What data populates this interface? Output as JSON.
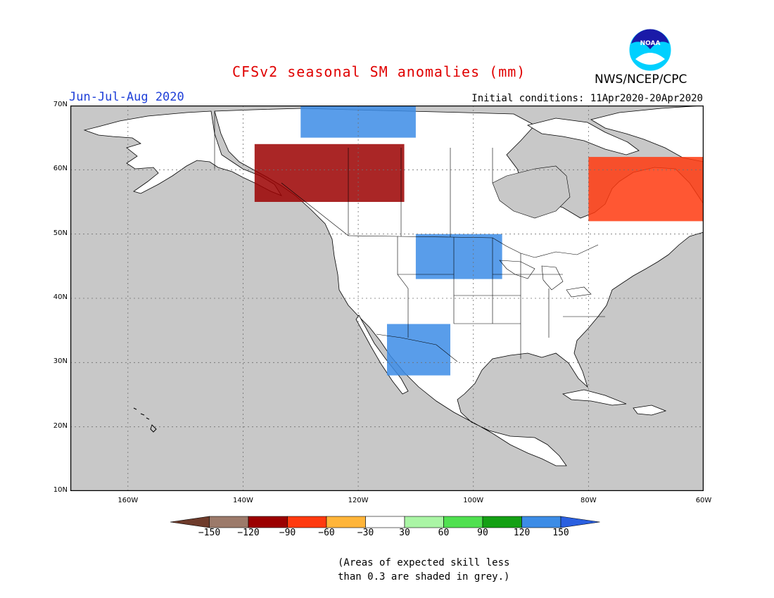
{
  "header": {
    "title": "CFSv2 seasonal SM anomalies (mm)",
    "season": "Jun-Jul-Aug 2020",
    "initial_conditions": "Initial conditions: 11Apr2020-20Apr2020",
    "agency": "NWS/NCEP/CPC",
    "logo_text": "NOAA"
  },
  "map": {
    "lon_range": [
      -170,
      -60
    ],
    "lat_range": [
      10,
      70
    ],
    "lat_labels": [
      "70N",
      "60N",
      "50N",
      "40N",
      "30N",
      "20N",
      "10N"
    ],
    "lon_labels": [
      "160W",
      "140W",
      "120W",
      "100W",
      "80W",
      "60W"
    ],
    "ocean_color": "#c8c8c8",
    "land_color": "#ffffff",
    "anomaly_areas": [
      {
        "region": "western-canada",
        "lon": [
          -138,
          -112
        ],
        "lat": [
          55,
          64
        ],
        "class": -105
      },
      {
        "region": "northern-quebec",
        "lon": [
          -80,
          -60
        ],
        "lat": [
          52,
          62
        ],
        "class": -75
      },
      {
        "region": "northern-plains",
        "lon": [
          -110,
          -95
        ],
        "lat": [
          43,
          50
        ],
        "class": 135
      },
      {
        "region": "southwest-us",
        "lon": [
          -115,
          -104
        ],
        "lat": [
          28,
          36
        ],
        "class": 135
      },
      {
        "region": "arctic-canada",
        "lon": [
          -130,
          -110
        ],
        "lat": [
          65,
          70
        ],
        "class": 135
      }
    ]
  },
  "colorbar": {
    "colors": [
      "#6e3b2b",
      "#9c7a6a",
      "#9b0000",
      "#ff3a0f",
      "#ffb53a",
      "#ffffff",
      "#aaf5a5",
      "#50e050",
      "#14a014",
      "#3c8ce6",
      "#2a5fe0"
    ],
    "labels": [
      "−150",
      "−120",
      "−90",
      "−60",
      "−30",
      "30",
      "60",
      "90",
      "120",
      "150"
    ]
  },
  "note": {
    "line1": "(Areas of expected skill less",
    "line2": "than 0.3 are shaded in grey.)"
  }
}
